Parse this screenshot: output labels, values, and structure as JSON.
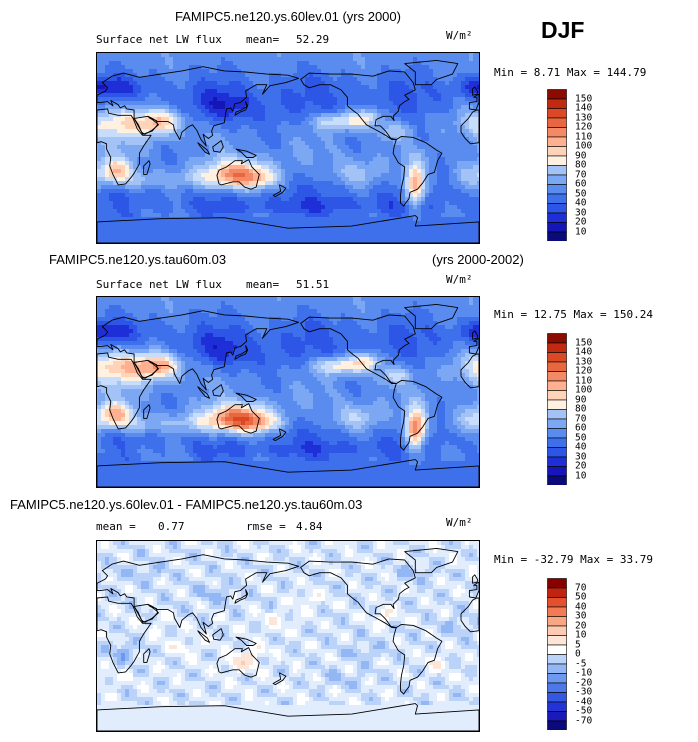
{
  "season": "DJF",
  "colors": {
    "abs_scale": [
      "#0a0a7a",
      "#1515b8",
      "#1e2fd8",
      "#2d56e6",
      "#3e70ec",
      "#5a8cef",
      "#7ba7f3",
      "#a3c3f7",
      "#c8dcfb",
      "#fff0df",
      "#ffd3b8",
      "#ffb090",
      "#f48a65",
      "#e8673f",
      "#dc4826",
      "#c02a10",
      "#8a0b00"
    ],
    "diff_scale": [
      "#0a0a7a",
      "#1a1ab8",
      "#2433d6",
      "#3458e2",
      "#4c78ea",
      "#6d98f0",
      "#93b6f5",
      "#bcd3f9",
      "#e1ecfd",
      "#ffffff",
      "#fde6d8",
      "#fccbb2",
      "#f9a683",
      "#f27b54",
      "#e2502e",
      "#c02410",
      "#8a0000"
    ],
    "coast": "#000000"
  },
  "panels": [
    {
      "title": "FAMIPC5.ne120.ys.60lev.01 (yrs 2000)",
      "title_right": "",
      "var_label": "Surface net LW flux",
      "mean_label": "mean=",
      "mean_value": "52.29",
      "rmse_label": "",
      "rmse_value": "",
      "units": "W/m²",
      "range_text": "Min =   8.71 Max = 144.79"
    },
    {
      "title": "FAMIPC5.ne120.ys.tau60m.03",
      "title_right": "(yrs 2000-2002)",
      "var_label": "Surface net LW flux",
      "mean_label": "mean=",
      "mean_value": "51.51",
      "rmse_label": "",
      "rmse_value": "",
      "units": "W/m²",
      "range_text": "Min =  12.75 Max = 150.24"
    },
    {
      "title": "FAMIPC5.ne120.ys.60lev.01 - FAMIPC5.ne120.ys.tau60m.03",
      "title_right": "",
      "var_label": "mean =",
      "mean_label": "",
      "mean_value": "0.77",
      "rmse_label": "rmse =",
      "rmse_value": "4.84",
      "units": "W/m²",
      "range_text": "Min = -32.79 Max =  33.79"
    }
  ],
  "chart_data": [
    {
      "type": "heatmap",
      "title": "FAMIPC5.ne120.ys.60lev.01 (yrs 2000)",
      "variable": "Surface net LW flux",
      "units": "W/m²",
      "season": "DJF",
      "mean": 52.29,
      "min": 8.71,
      "max": 144.79,
      "colorbar_levels": [
        150,
        140,
        130,
        120,
        110,
        100,
        90,
        80,
        70,
        60,
        50,
        40,
        30,
        20,
        10
      ]
    },
    {
      "type": "heatmap",
      "title": "FAMIPC5.ne120.ys.tau60m.03",
      "years": "(yrs 2000-2002)",
      "variable": "Surface net LW flux",
      "units": "W/m²",
      "season": "DJF",
      "mean": 51.51,
      "min": 12.75,
      "max": 150.24,
      "colorbar_levels": [
        150,
        140,
        130,
        120,
        110,
        100,
        90,
        80,
        70,
        60,
        50,
        40,
        30,
        20,
        10
      ]
    },
    {
      "type": "heatmap",
      "title": "FAMIPC5.ne120.ys.60lev.01 - FAMIPC5.ne120.ys.tau60m.03",
      "units": "W/m²",
      "season": "DJF",
      "mean": 0.77,
      "rmse": 4.84,
      "min": -32.79,
      "max": 33.79,
      "colorbar_levels": [
        70,
        50,
        40,
        30,
        20,
        10,
        5,
        0,
        -5,
        -10,
        -20,
        -30,
        -40,
        -50,
        -70
      ]
    }
  ]
}
